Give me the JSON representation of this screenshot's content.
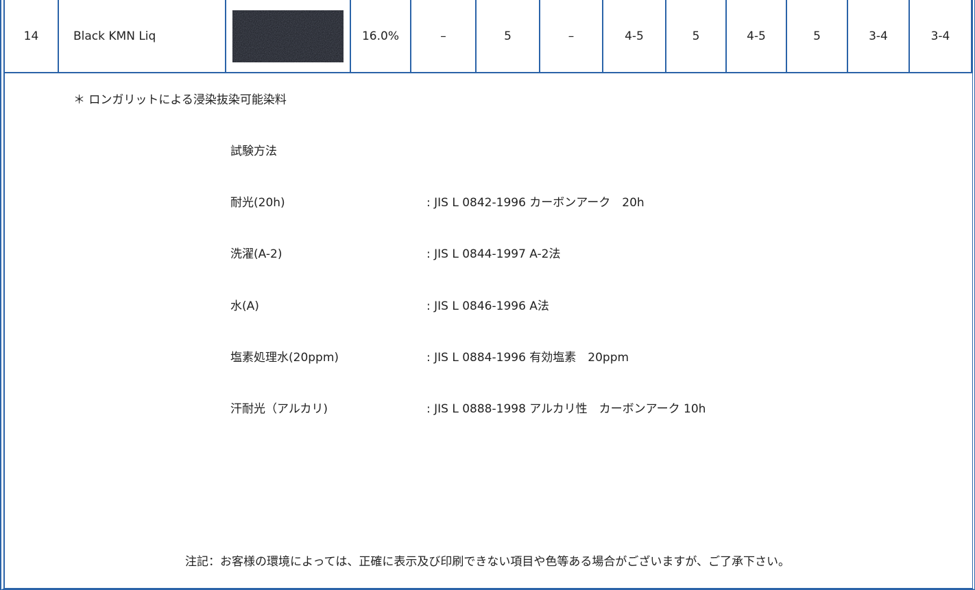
{
  "table": {
    "rows": [
      [
        "14",
        "Black  KMN  Liq",
        "16.0%",
        "–",
        "5",
        "–",
        "4-5",
        "5",
        "4-5",
        "5",
        "3-4",
        "3-4"
      ]
    ]
  },
  "note": "＊ ロンガリットによる浸染抜染可能染料",
  "methods": {
    "title": "試験方法",
    "items": [
      {
        "label": "耐光(20h)",
        "value": ":  JIS L 0842-1996 カーボンアーク　20h"
      },
      {
        "label": "洗濯(A-2)",
        "value": ":  JIS L 0844-1997 A-2法"
      },
      {
        "label": "水(A)",
        "value": ":  JIS L 0846-1996 A法"
      },
      {
        "label": "塩素処理水(20ppm)",
        "value": ":  JIS L 0884-1996 有効塩素　20ppm"
      },
      {
        "label": "汗耐光（アルカリ)",
        "value": ":  JIS L 0888-1998 アルカリ性　カーボンアーク 10h"
      }
    ]
  },
  "footer": "注記：お客様の環境によっては、正確に表示及び印刷できない項目や色等ある場合がございますが、ご了承下さい。"
}
